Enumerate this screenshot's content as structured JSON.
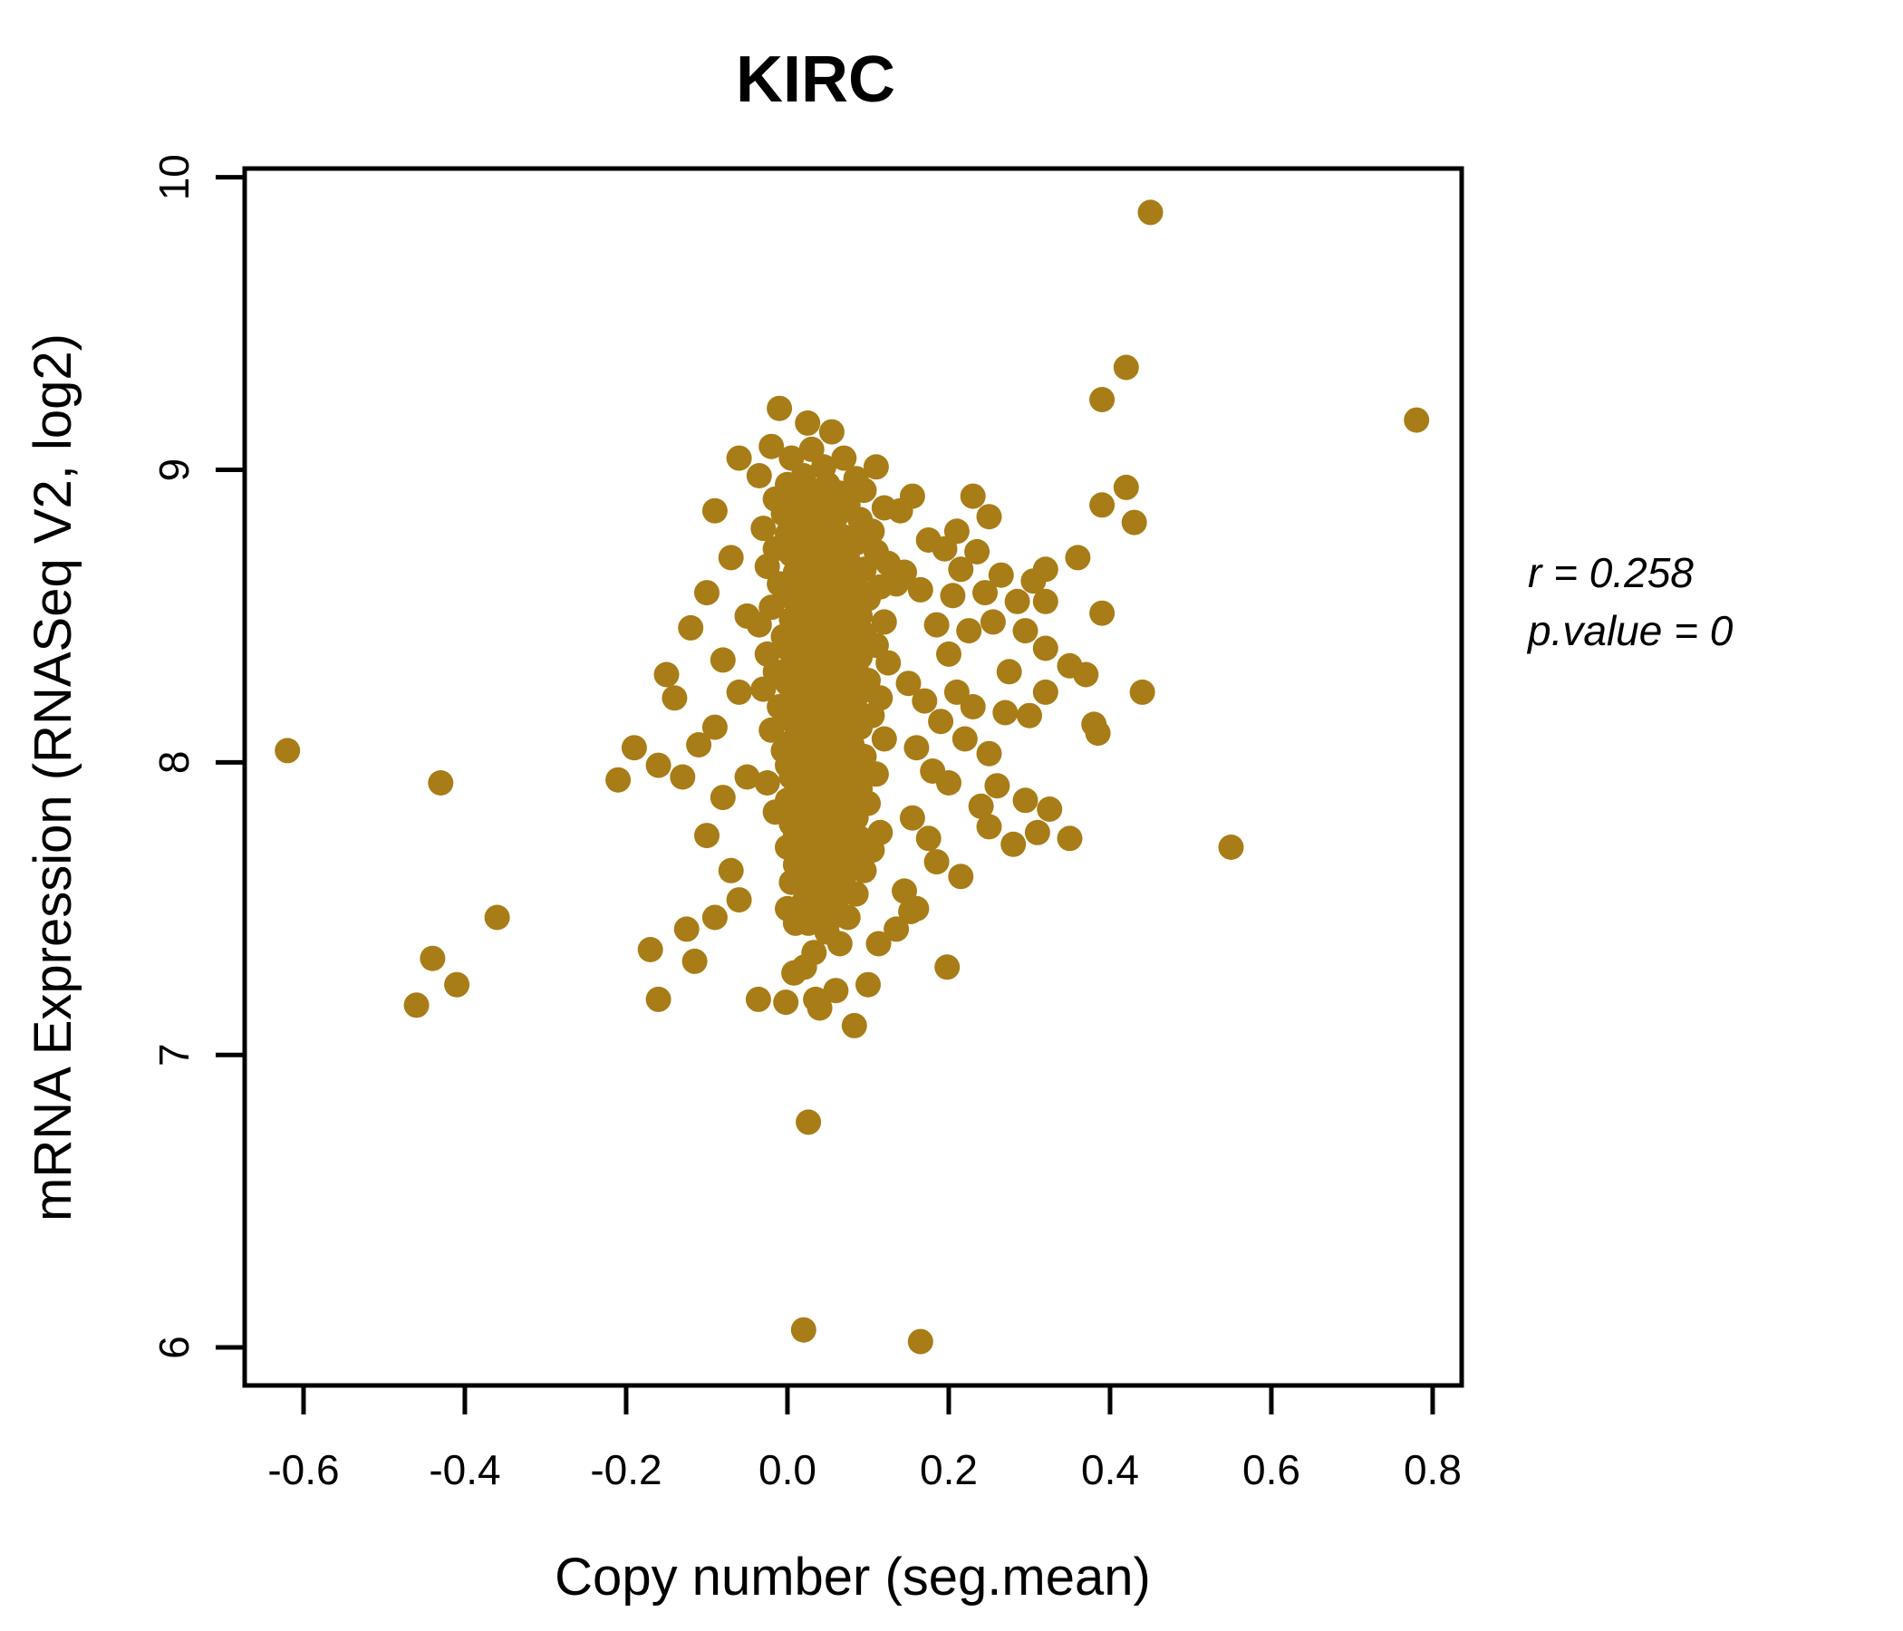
{
  "title": "KIRC",
  "axes": {
    "x_label": "Copy number (seg.mean)",
    "y_label": "mRNA Expression (RNASeq V2, log2)"
  },
  "annotation": {
    "line1": "r = 0.258",
    "line2": "p.value = 0"
  },
  "chart_data": {
    "type": "scatter",
    "title": "KIRC",
    "xlabel": "Copy number (seg.mean)",
    "ylabel": "mRNA Expression (RNASeq V2, log2)",
    "xlim": [
      -0.673,
      0.836
    ],
    "ylim": [
      5.87,
      10.03
    ],
    "xticks": [
      -0.6,
      -0.4,
      -0.2,
      0.0,
      0.2,
      0.4,
      0.6,
      0.8
    ],
    "xtick_labels": [
      "-0.6",
      "-0.4",
      "-0.2",
      "0.0",
      "0.2",
      "0.4",
      "0.6",
      "0.8"
    ],
    "yticks": [
      6,
      7,
      8,
      9,
      10
    ],
    "ytick_labels": [
      "6",
      "7",
      "8",
      "9",
      "10"
    ],
    "grid": false,
    "legend": "none",
    "point_color": "#A87C16",
    "title_color": "#A87C16",
    "correlation": {
      "r": 0.258,
      "p_value": 0
    },
    "stats_text": {
      "line1": "r = 0.258",
      "line2": "p.value = 0"
    },
    "points": [
      [
        -0.62,
        8.04
      ],
      [
        -0.43,
        7.93
      ],
      [
        -0.46,
        7.17
      ],
      [
        -0.44,
        7.33
      ],
      [
        -0.41,
        7.24
      ],
      [
        -0.36,
        7.47
      ],
      [
        -0.21,
        7.94
      ],
      [
        -0.17,
        7.36
      ],
      [
        -0.16,
        7.19
      ],
      [
        -0.125,
        7.43
      ],
      [
        -0.115,
        7.32
      ],
      [
        -0.09,
        7.47
      ],
      [
        -0.19,
        8.05
      ],
      [
        -0.16,
        7.99
      ],
      [
        -0.15,
        8.3
      ],
      [
        -0.14,
        8.22
      ],
      [
        -0.13,
        7.95
      ],
      [
        -0.12,
        8.46
      ],
      [
        -0.11,
        8.06
      ],
      [
        -0.1,
        7.75
      ],
      [
        -0.1,
        8.58
      ],
      [
        -0.09,
        8.12
      ],
      [
        -0.09,
        8.86
      ],
      [
        -0.08,
        7.88
      ],
      [
        -0.08,
        8.35
      ],
      [
        -0.07,
        8.7
      ],
      [
        -0.07,
        7.63
      ],
      [
        -0.06,
        8.24
      ],
      [
        -0.06,
        9.04
      ],
      [
        -0.05,
        7.95
      ],
      [
        -0.05,
        8.5
      ],
      [
        -0.06,
        7.53
      ],
      [
        -0.01,
        9.21
      ],
      [
        0.025,
        9.16
      ],
      [
        0.055,
        9.13
      ],
      [
        -0.02,
        9.08
      ],
      [
        0.03,
        9.07
      ],
      [
        0.005,
        9.04
      ],
      [
        0.07,
        9.04
      ],
      [
        0.045,
        9.01
      ],
      [
        0.11,
        9.01
      ],
      [
        -0.035,
        8.98
      ],
      [
        0.02,
        8.98
      ],
      [
        0.085,
        8.97
      ],
      [
        0.0,
        8.95
      ],
      [
        0.05,
        8.95
      ],
      [
        0.03,
        8.93
      ],
      [
        0.095,
        8.93
      ],
      [
        0.065,
        8.92
      ],
      [
        -0.015,
        8.9
      ],
      [
        0.01,
        8.9
      ],
      [
        0.045,
        8.89
      ],
      [
        0.025,
        8.88
      ],
      [
        0.075,
        8.88
      ],
      [
        0.12,
        8.87
      ],
      [
        -0.005,
        8.85
      ],
      [
        0.04,
        8.85
      ],
      [
        0.06,
        8.84
      ],
      [
        0.015,
        8.83
      ],
      [
        0.09,
        8.83
      ],
      [
        -0.03,
        8.8
      ],
      [
        0.035,
        8.8
      ],
      [
        0.055,
        8.79
      ],
      [
        0.105,
        8.79
      ],
      [
        0.0,
        8.78
      ],
      [
        0.07,
        8.77
      ],
      [
        0.02,
        8.76
      ],
      [
        0.045,
        8.75
      ],
      [
        0.085,
        8.75
      ],
      [
        -0.015,
        8.73
      ],
      [
        0.06,
        8.73
      ],
      [
        0.11,
        8.72
      ],
      [
        0.005,
        8.71
      ],
      [
        0.035,
        8.71
      ],
      [
        0.05,
        8.69
      ],
      [
        0.075,
        8.69
      ],
      [
        0.125,
        8.68
      ],
      [
        -0.025,
        8.67
      ],
      [
        0.025,
        8.67
      ],
      [
        0.095,
        8.66
      ],
      [
        0.01,
        8.65
      ],
      [
        0.055,
        8.65
      ],
      [
        0.04,
        8.63
      ],
      [
        0.07,
        8.63
      ],
      [
        0.03,
        8.62
      ],
      [
        -0.01,
        8.61
      ],
      [
        0.085,
        8.61
      ],
      [
        0.115,
        8.6
      ],
      [
        0.02,
        8.59
      ],
      [
        0.06,
        8.59
      ],
      [
        0.0,
        8.57
      ],
      [
        0.045,
        8.57
      ],
      [
        0.1,
        8.56
      ],
      [
        0.03,
        8.55
      ],
      [
        0.075,
        8.55
      ],
      [
        -0.02,
        8.53
      ],
      [
        0.015,
        8.53
      ],
      [
        0.055,
        8.52
      ],
      [
        0.04,
        8.51
      ],
      [
        0.065,
        8.51
      ],
      [
        0.09,
        8.5
      ],
      [
        0.005,
        8.49
      ],
      [
        0.025,
        8.49
      ],
      [
        0.12,
        8.48
      ],
      [
        -0.035,
        8.47
      ],
      [
        0.05,
        8.47
      ],
      [
        0.07,
        8.46
      ],
      [
        0.015,
        8.45
      ],
      [
        0.035,
        8.45
      ],
      [
        0.095,
        8.44
      ],
      [
        -0.005,
        8.43
      ],
      [
        0.06,
        8.43
      ],
      [
        0.08,
        8.42
      ],
      [
        0.025,
        8.41
      ],
      [
        0.045,
        8.41
      ],
      [
        0.11,
        8.4
      ],
      [
        0.0,
        8.39
      ],
      [
        0.03,
        8.39
      ],
      [
        0.07,
        8.38
      ],
      [
        -0.025,
        8.37
      ],
      [
        0.055,
        8.37
      ],
      [
        0.09,
        8.36
      ],
      [
        0.015,
        8.35
      ],
      [
        0.04,
        8.35
      ],
      [
        0.125,
        8.34
      ],
      [
        0.005,
        8.33
      ],
      [
        0.065,
        8.33
      ],
      [
        0.085,
        8.32
      ],
      [
        -0.015,
        8.31
      ],
      [
        0.03,
        8.31
      ],
      [
        0.05,
        8.3
      ],
      [
        0.02,
        8.29
      ],
      [
        0.075,
        8.29
      ],
      [
        0.1,
        8.28
      ],
      [
        0.0,
        8.27
      ],
      [
        0.045,
        8.27
      ],
      [
        0.06,
        8.26
      ],
      [
        -0.03,
        8.25
      ],
      [
        0.025,
        8.25
      ],
      [
        0.09,
        8.24
      ],
      [
        0.035,
        8.23
      ],
      [
        0.055,
        8.23
      ],
      [
        0.115,
        8.22
      ],
      [
        0.01,
        8.21
      ],
      [
        0.045,
        8.21
      ],
      [
        0.07,
        8.2
      ],
      [
        -0.01,
        8.19
      ],
      [
        0.03,
        8.19
      ],
      [
        0.085,
        8.18
      ],
      [
        0.02,
        8.17
      ],
      [
        0.05,
        8.17
      ],
      [
        0.105,
        8.16
      ],
      [
        0.0,
        8.15
      ],
      [
        0.04,
        8.15
      ],
      [
        0.065,
        8.14
      ],
      [
        0.025,
        8.13
      ],
      [
        0.055,
        8.13
      ],
      [
        0.09,
        8.12
      ],
      [
        -0.02,
        8.11
      ],
      [
        0.045,
        8.11
      ],
      [
        0.075,
        8.1
      ],
      [
        0.015,
        8.09
      ],
      [
        0.06,
        8.09
      ],
      [
        0.12,
        8.08
      ],
      [
        0.005,
        8.07
      ],
      [
        0.035,
        8.07
      ],
      [
        0.08,
        8.06
      ],
      [
        0.025,
        8.05
      ],
      [
        0.05,
        8.05
      ],
      [
        -0.005,
        8.04
      ],
      [
        0.04,
        8.03
      ],
      [
        0.07,
        8.03
      ],
      [
        0.095,
        8.02
      ],
      [
        0.01,
        8.01
      ],
      [
        0.055,
        8.01
      ],
      [
        0.03,
        8.0
      ],
      [
        0.0,
        7.99
      ],
      [
        0.045,
        7.99
      ],
      [
        0.085,
        7.98
      ],
      [
        0.02,
        7.97
      ],
      [
        0.065,
        7.97
      ],
      [
        0.11,
        7.96
      ],
      [
        0.005,
        7.95
      ],
      [
        0.04,
        7.95
      ],
      [
        0.075,
        7.94
      ],
      [
        -0.025,
        7.93
      ],
      [
        0.025,
        7.93
      ],
      [
        0.06,
        7.92
      ],
      [
        0.035,
        7.91
      ],
      [
        0.09,
        7.91
      ],
      [
        0.05,
        7.9
      ],
      [
        0.01,
        7.89
      ],
      [
        0.07,
        7.89
      ],
      [
        0.03,
        7.88
      ],
      [
        0.0,
        7.87
      ],
      [
        0.055,
        7.87
      ],
      [
        0.1,
        7.86
      ],
      [
        0.025,
        7.85
      ],
      [
        0.045,
        7.85
      ],
      [
        0.08,
        7.84
      ],
      [
        -0.015,
        7.83
      ],
      [
        0.015,
        7.83
      ],
      [
        0.065,
        7.82
      ],
      [
        0.04,
        7.81
      ],
      [
        0.085,
        7.81
      ],
      [
        0.055,
        7.8
      ],
      [
        0.005,
        7.79
      ],
      [
        0.02,
        7.79
      ],
      [
        0.06,
        7.78
      ],
      [
        0.035,
        7.77
      ],
      [
        0.075,
        7.77
      ],
      [
        0.115,
        7.76
      ],
      [
        0.01,
        7.75
      ],
      [
        0.05,
        7.75
      ],
      [
        0.09,
        7.74
      ],
      [
        0.03,
        7.73
      ],
      [
        0.065,
        7.73
      ],
      [
        0.0,
        7.71
      ],
      [
        0.045,
        7.71
      ],
      [
        0.105,
        7.7
      ],
      [
        0.02,
        7.69
      ],
      [
        0.055,
        7.69
      ],
      [
        0.035,
        7.67
      ],
      [
        0.08,
        7.67
      ],
      [
        0.01,
        7.65
      ],
      [
        0.06,
        7.65
      ],
      [
        0.04,
        7.63
      ],
      [
        0.095,
        7.63
      ],
      [
        0.025,
        7.61
      ],
      [
        0.07,
        7.61
      ],
      [
        0.005,
        7.59
      ],
      [
        0.05,
        7.59
      ],
      [
        0.03,
        7.57
      ],
      [
        0.065,
        7.57
      ],
      [
        0.045,
        7.55
      ],
      [
        0.085,
        7.55
      ],
      [
        0.02,
        7.52
      ],
      [
        0.06,
        7.52
      ],
      [
        0.0,
        7.5
      ],
      [
        0.035,
        7.5
      ],
      [
        0.055,
        7.47
      ],
      [
        0.075,
        7.47
      ],
      [
        0.01,
        7.45
      ],
      [
        0.026,
        7.45
      ],
      [
        0.049,
        7.42
      ],
      [
        0.113,
        7.38
      ],
      [
        0.065,
        7.38
      ],
      [
        0.033,
        7.35
      ],
      [
        0.021,
        7.3
      ],
      [
        0.153,
        7.49
      ],
      [
        0.198,
        7.3
      ],
      [
        0.012,
        8.42
      ],
      [
        0.032,
        8.4
      ],
      [
        0.052,
        8.38
      ],
      [
        0.008,
        8.36
      ],
      [
        0.028,
        8.34
      ],
      [
        0.048,
        8.32
      ],
      [
        0.068,
        8.3
      ],
      [
        0.015,
        8.28
      ],
      [
        0.035,
        8.26
      ],
      [
        0.055,
        8.24
      ],
      [
        0.005,
        8.22
      ],
      [
        0.025,
        8.2
      ],
      [
        0.045,
        8.18
      ],
      [
        0.065,
        8.16
      ],
      [
        0.018,
        8.14
      ],
      [
        0.038,
        8.12
      ],
      [
        0.058,
        8.1
      ],
      [
        0.01,
        8.08
      ],
      [
        0.03,
        8.06
      ],
      [
        0.05,
        8.04
      ],
      [
        0.07,
        8.02
      ],
      [
        0.022,
        8.0
      ],
      [
        0.042,
        7.98
      ],
      [
        0.062,
        7.96
      ],
      [
        0.014,
        7.94
      ],
      [
        0.034,
        7.92
      ],
      [
        0.054,
        7.9
      ],
      [
        0.006,
        7.88
      ],
      [
        0.026,
        7.86
      ],
      [
        0.046,
        7.84
      ],
      [
        0.066,
        7.82
      ],
      [
        0.02,
        7.8
      ],
      [
        0.04,
        7.78
      ],
      [
        0.06,
        7.76
      ],
      [
        0.016,
        8.44
      ],
      [
        0.036,
        8.46
      ],
      [
        0.056,
        8.48
      ],
      [
        0.024,
        8.39
      ],
      [
        0.044,
        8.35
      ],
      [
        0.064,
        8.27
      ],
      [
        0.135,
        8.61
      ],
      [
        0.14,
        8.86
      ],
      [
        0.155,
        8.91
      ],
      [
        0.145,
        8.65
      ],
      [
        0.165,
        8.59
      ],
      [
        0.175,
        8.76
      ],
      [
        0.185,
        8.47
      ],
      [
        0.195,
        8.73
      ],
      [
        0.2,
        8.37
      ],
      [
        0.205,
        8.57
      ],
      [
        0.215,
        8.66
      ],
      [
        0.225,
        8.45
      ],
      [
        0.235,
        8.72
      ],
      [
        0.245,
        8.58
      ],
      [
        0.255,
        8.48
      ],
      [
        0.265,
        8.64
      ],
      [
        0.275,
        8.31
      ],
      [
        0.285,
        8.55
      ],
      [
        0.295,
        8.45
      ],
      [
        0.305,
        8.62
      ],
      [
        0.15,
        8.27
      ],
      [
        0.17,
        8.21
      ],
      [
        0.19,
        8.14
      ],
      [
        0.21,
        8.24
      ],
      [
        0.23,
        8.19
      ],
      [
        0.25,
        8.03
      ],
      [
        0.27,
        8.17
      ],
      [
        0.16,
        8.05
      ],
      [
        0.18,
        7.97
      ],
      [
        0.22,
        8.08
      ],
      [
        0.26,
        7.92
      ],
      [
        0.3,
        8.16
      ],
      [
        0.24,
        7.85
      ],
      [
        0.2,
        7.93
      ],
      [
        0.155,
        7.81
      ],
      [
        0.185,
        7.66
      ],
      [
        0.215,
        7.61
      ],
      [
        0.175,
        7.74
      ],
      [
        0.145,
        7.56
      ],
      [
        0.16,
        7.5
      ],
      [
        0.31,
        7.76
      ],
      [
        0.28,
        7.72
      ],
      [
        0.135,
        7.43
      ],
      [
        0.25,
        7.78
      ],
      [
        0.25,
        8.84
      ],
      [
        0.21,
        8.79
      ],
      [
        0.23,
        8.91
      ],
      [
        0.295,
        7.87
      ],
      [
        0.45,
        9.88
      ],
      [
        0.42,
        9.35
      ],
      [
        0.39,
        9.24
      ],
      [
        0.78,
        9.17
      ],
      [
        0.42,
        8.94
      ],
      [
        0.39,
        8.88
      ],
      [
        0.43,
        8.82
      ],
      [
        0.36,
        8.7
      ],
      [
        0.32,
        8.66
      ],
      [
        0.32,
        8.55
      ],
      [
        0.39,
        8.51
      ],
      [
        0.32,
        8.39
      ],
      [
        0.35,
        8.33
      ],
      [
        0.37,
        8.3
      ],
      [
        0.32,
        8.24
      ],
      [
        0.44,
        8.24
      ],
      [
        0.38,
        8.13
      ],
      [
        0.385,
        8.1
      ],
      [
        0.325,
        7.84
      ],
      [
        0.35,
        7.74
      ],
      [
        0.55,
        7.71
      ],
      [
        0.02,
        6.06
      ],
      [
        0.165,
        6.02
      ],
      [
        0.026,
        6.77
      ],
      [
        -0.036,
        7.19
      ],
      [
        0.035,
        7.19
      ],
      [
        0.04,
        7.16
      ],
      [
        0.083,
        7.1
      ],
      [
        0.1,
        7.24
      ],
      [
        -0.002,
        7.18
      ],
      [
        0.008,
        7.28
      ],
      [
        0.06,
        7.22
      ]
    ]
  }
}
